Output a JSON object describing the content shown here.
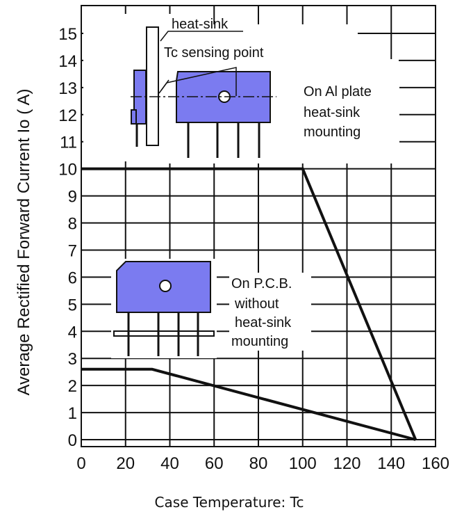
{
  "chart_data": {
    "type": "line",
    "title": "",
    "xlabel": "Case Temperature: Tc",
    "ylabel": "Average Rectified Forward Current Io ( A)",
    "xlim": [
      0,
      160
    ],
    "ylim": [
      0,
      16
    ],
    "x_ticks": [
      0,
      20,
      40,
      60,
      80,
      100,
      120,
      140,
      160
    ],
    "y_ticks": [
      0,
      1,
      2,
      3,
      4,
      5,
      6,
      7,
      8,
      9,
      10,
      11,
      12,
      13,
      14,
      15
    ],
    "grid": true,
    "series": [
      {
        "x": [
          0,
          100,
          151
        ],
        "y": [
          10,
          10,
          0
        ]
      },
      {
        "x": [
          0,
          32,
          151
        ],
        "y": [
          2.6,
          2.6,
          0
        ]
      }
    ],
    "annotations": {
      "heat_sink": "heat-sink",
      "tc_point": "Tc sensing point",
      "al_plate": [
        "On Al plate",
        "heat-sink",
        "mounting"
      ],
      "pcb": [
        "On P.C.B.",
        "without",
        "heat-sink",
        "mounting"
      ]
    },
    "colors": {
      "line": "#111111",
      "device": "#7b7bf0",
      "grid": "#111111"
    }
  }
}
